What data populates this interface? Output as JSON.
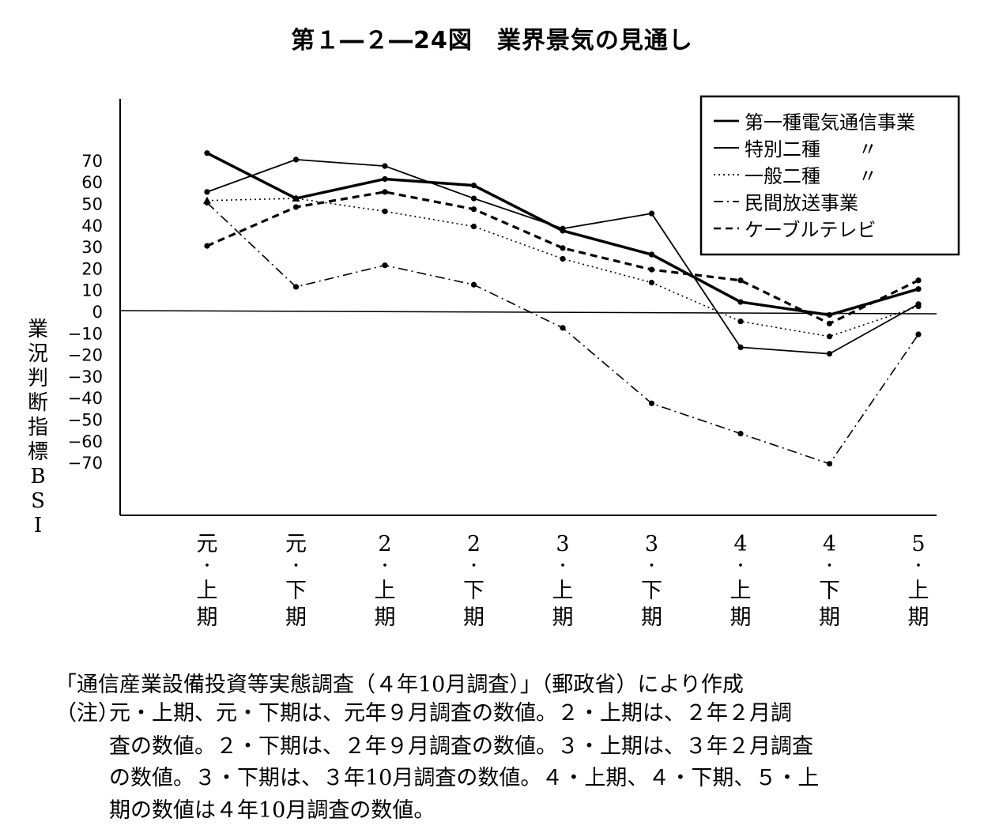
{
  "title": "第１―２―24図　業界景気の見通し",
  "chart_data": {
    "type": "line",
    "ylabel_chars": [
      "業",
      "況",
      "判",
      "断",
      "指",
      "標",
      "B",
      "S",
      "I"
    ],
    "yticks": [
      70,
      60,
      50,
      40,
      30,
      20,
      10,
      0,
      -10,
      -20,
      -30,
      -40,
      -50,
      -60,
      -70
    ],
    "ytick_labels": [
      "70",
      "60",
      "50",
      "40",
      "30",
      "20",
      "10",
      "0",
      "−10",
      "−20",
      "−30",
      "−40",
      "−50",
      "−60",
      "−70"
    ],
    "categories": [
      [
        "元",
        "・",
        "上",
        "期"
      ],
      [
        "元",
        "・",
        "下",
        "期"
      ],
      [
        "2",
        "・",
        "上",
        "期"
      ],
      [
        "2",
        "・",
        "下",
        "期"
      ],
      [
        "3",
        "・",
        "上",
        "期"
      ],
      [
        "3",
        "・",
        "下",
        "期"
      ],
      [
        "4",
        "・",
        "上",
        "期"
      ],
      [
        "4",
        "・",
        "下",
        "期"
      ],
      [
        "5",
        "・",
        "上",
        "期"
      ]
    ],
    "series": [
      {
        "name": "第一種電気通信事業",
        "style": "thick-solid",
        "marker": "dot",
        "values": [
          73,
          52,
          61,
          58,
          37,
          26,
          4,
          -2,
          10
        ]
      },
      {
        "name": "特別二種　　〃",
        "style": "solid",
        "marker": "dot",
        "values": [
          55,
          70,
          67,
          52,
          38,
          45,
          -17,
          -20,
          3
        ]
      },
      {
        "name": "一般二種　　〃",
        "style": "dotted",
        "marker": "dot",
        "values": [
          51,
          52,
          46,
          39,
          24,
          13,
          -5,
          -12,
          2
        ]
      },
      {
        "name": "民間放送事業",
        "style": "dash-dot",
        "marker": "dot",
        "values": [
          50,
          11,
          21,
          12,
          -8,
          -43,
          -57,
          -71,
          -11
        ]
      },
      {
        "name": "ケーブルテレビ",
        "style": "thick-dashed",
        "marker": "dot",
        "values": [
          30,
          48,
          55,
          47,
          29,
          19,
          14,
          -6,
          14
        ]
      }
    ],
    "legend_position": "top-right"
  },
  "notes": {
    "source": "「通信産業設備投資等実態調査（４年10月調査）」（郵政省）により作成",
    "label": "（注）",
    "lines": [
      "元・上期、元・下期は、元年９月調査の数値。２・上期は、２年２月調",
      "査の数値。２・下期は、２年９月調査の数値。３・上期は、３年２月調査",
      "の数値。３・下期は、３年10月調査の数値。４・上期、４・下期、５・上",
      "期の数値は４年10月調査の数値。"
    ]
  }
}
